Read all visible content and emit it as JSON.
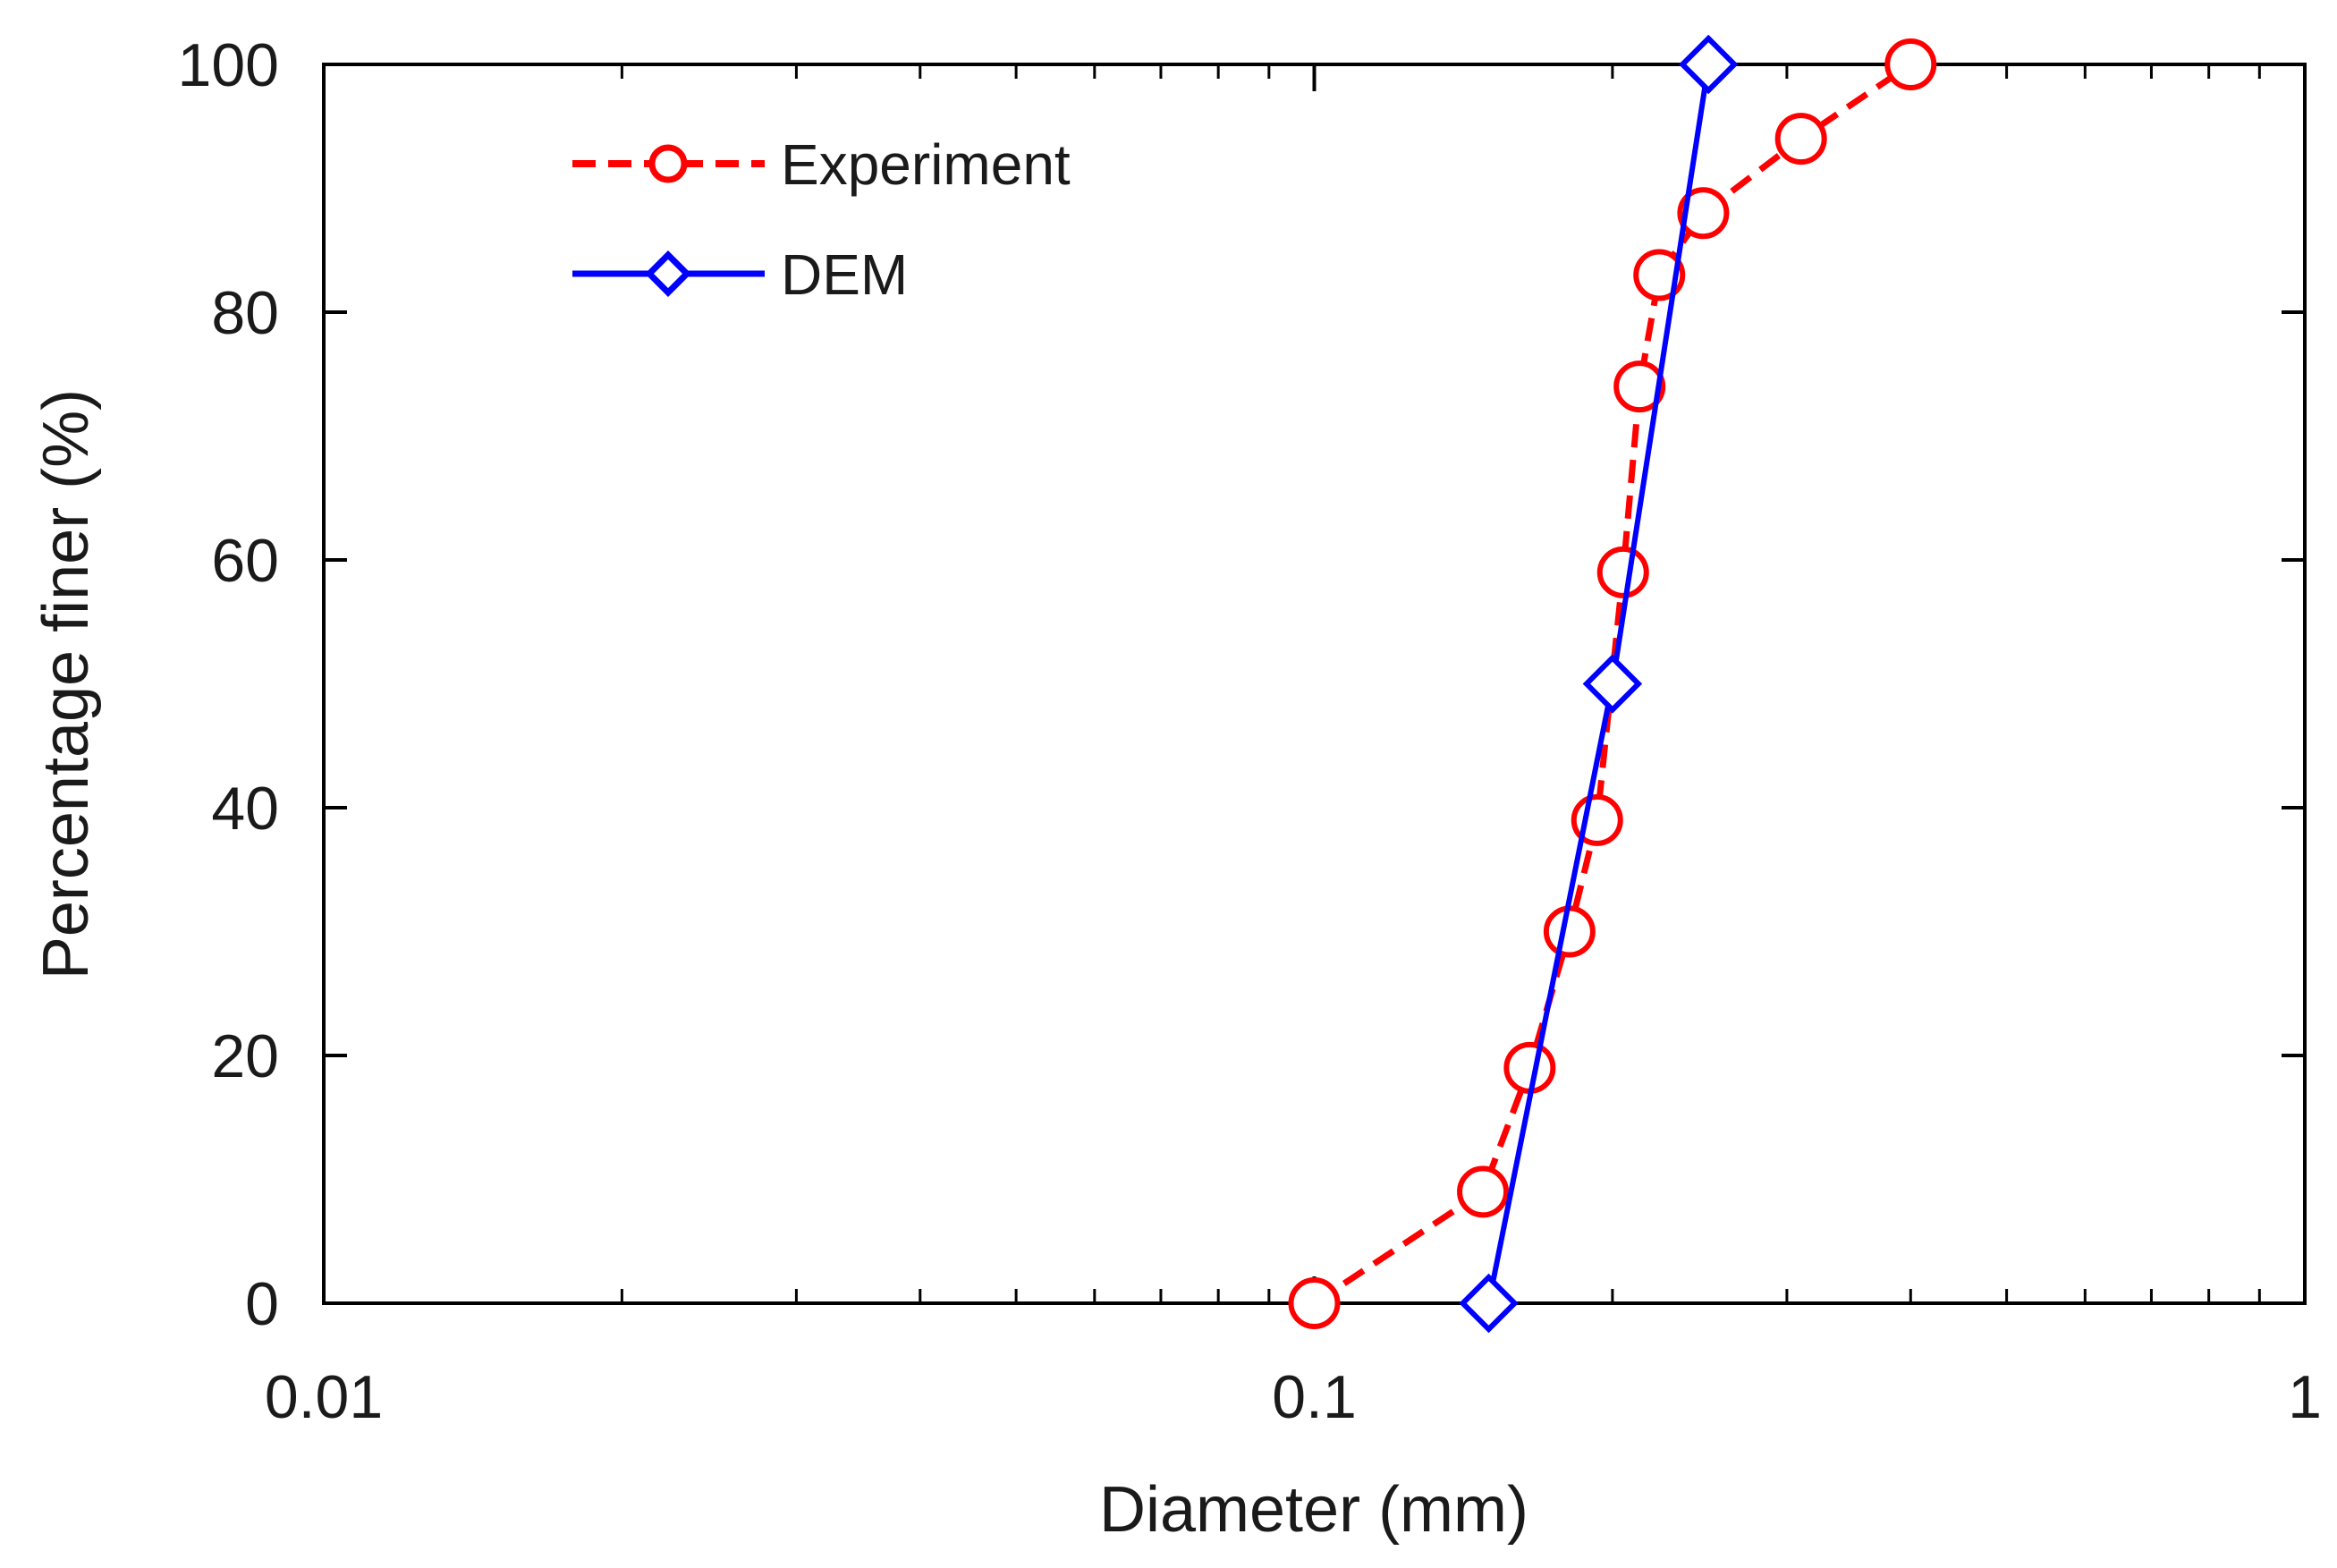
{
  "chart_data": {
    "type": "scatter",
    "title": "",
    "xlabel": "Diameter (mm)",
    "ylabel": "Percentage finer (%)",
    "xscale": "log",
    "xlim": [
      0.01,
      1
    ],
    "ylim": [
      0,
      100
    ],
    "grid": false,
    "legend_position": "top-left",
    "x_tick_labels": [
      "0.01",
      "0.1",
      "1"
    ],
    "y_tick_labels": [
      "0",
      "20",
      "40",
      "60",
      "80",
      "100"
    ],
    "series": [
      {
        "name": "Experiment",
        "color": "#ff0000",
        "line": "dashed",
        "marker": "circle",
        "x": [
          0.1,
          0.148,
          0.165,
          0.181,
          0.193,
          0.205,
          0.213,
          0.223,
          0.247,
          0.31,
          0.4
        ],
        "y": [
          0,
          9,
          19,
          30,
          39,
          59,
          74,
          83,
          88,
          94,
          100
        ]
      },
      {
        "name": "DEM",
        "color": "#0000ff",
        "line": "solid",
        "marker": "diamond",
        "x": [
          0.15,
          0.2,
          0.25
        ],
        "y": [
          0,
          50,
          100
        ]
      }
    ]
  }
}
